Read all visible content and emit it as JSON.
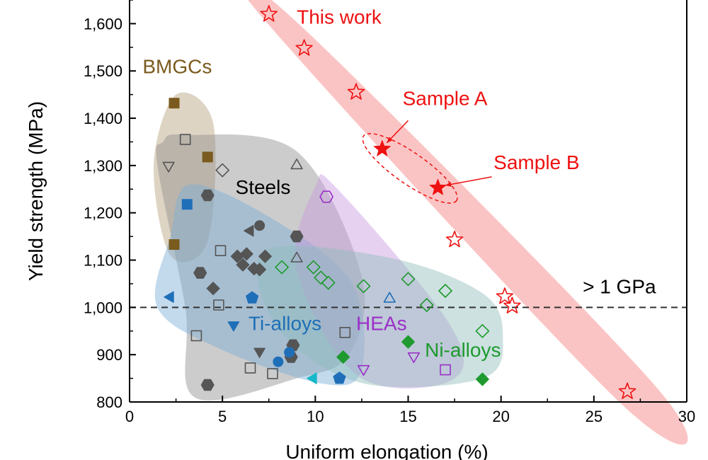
{
  "chart_data": {
    "type": "scatter",
    "xlabel": "Uniform elongation (%)",
    "ylabel": "Yield strength (MPa)",
    "xlim": [
      0,
      30
    ],
    "ylim": [
      800,
      1650
    ],
    "x_ticks": [
      0,
      5,
      10,
      15,
      20,
      25,
      30
    ],
    "y_ticks": [
      800,
      900,
      1000,
      1100,
      1200,
      1300,
      1400,
      1500,
      1600
    ],
    "x_tick_labels": [
      "0",
      "5",
      "10",
      "15",
      "20",
      "25",
      "30"
    ],
    "y_tick_labels": [
      "800",
      "900",
      "1,000",
      "1,100",
      "1,200",
      "1,300",
      "1,400",
      "1,500",
      "1,600"
    ],
    "threshold": {
      "y": 1000,
      "label": "> 1 GPa"
    },
    "groups": [
      {
        "name": "This work",
        "color": "#ee1111",
        "fill": "#f77d7d",
        "region": [
          [
            7.0,
            1620
          ],
          [
            9.5,
            1585
          ],
          [
            28.5,
            825
          ],
          [
            26.5,
            795
          ]
        ],
        "points": [
          {
            "x": 7.5,
            "y": 1620,
            "marker": "star-open"
          },
          {
            "x": 9.4,
            "y": 1548,
            "marker": "star-open"
          },
          {
            "x": 12.2,
            "y": 1455,
            "marker": "star-open"
          },
          {
            "x": 17.5,
            "y": 1143,
            "marker": "star-open"
          },
          {
            "x": 20.2,
            "y": 1023,
            "marker": "star-open"
          },
          {
            "x": 20.6,
            "y": 1003,
            "marker": "star-open"
          },
          {
            "x": 26.8,
            "y": 822,
            "marker": "star-open"
          },
          {
            "x": 13.6,
            "y": 1335,
            "marker": "star-filled"
          },
          {
            "x": 16.6,
            "y": 1253,
            "marker": "star-filled"
          }
        ]
      },
      {
        "name": "BMGCs",
        "color": "#7a5a1e",
        "fill": "#b59f7a",
        "region": [
          [
            2.5,
            1450
          ],
          [
            4.5,
            1390
          ],
          [
            4.2,
            1140
          ],
          [
            2.2,
            1110
          ],
          [
            1.3,
            1300
          ]
        ],
        "points": [
          {
            "x": 2.4,
            "y": 1432,
            "marker": "square-filled"
          },
          {
            "x": 4.2,
            "y": 1318,
            "marker": "square-filled"
          },
          {
            "x": 2.4,
            "y": 1133,
            "marker": "square-filled"
          }
        ]
      },
      {
        "name": "Steels",
        "color": "#555555",
        "fill": "#8f8f8f",
        "region": [
          [
            1.8,
            1350
          ],
          [
            3.0,
            1365
          ],
          [
            9.0,
            1330
          ],
          [
            12.5,
            1065
          ],
          [
            11.8,
            900
          ],
          [
            9.0,
            850
          ],
          [
            3.5,
            810
          ],
          [
            3.0,
            1000
          ],
          [
            1.5,
            1300
          ]
        ],
        "points": [
          {
            "x": 3.0,
            "y": 1355,
            "marker": "square-open"
          },
          {
            "x": 2.1,
            "y": 1300,
            "marker": "triangle-down-open"
          },
          {
            "x": 5.0,
            "y": 1290,
            "marker": "diamond-open"
          },
          {
            "x": 9.0,
            "y": 1300,
            "marker": "triangle-up-open"
          },
          {
            "x": 4.2,
            "y": 1237,
            "marker": "hexagon-filled"
          },
          {
            "x": 9.0,
            "y": 1150,
            "marker": "hexagon-filled"
          },
          {
            "x": 6.5,
            "y": 1162,
            "marker": "triangle-left-filled"
          },
          {
            "x": 7.0,
            "y": 1173,
            "marker": "circle-filled"
          },
          {
            "x": 4.9,
            "y": 1120,
            "marker": "square-open"
          },
          {
            "x": 9.0,
            "y": 1103,
            "marker": "triangle-up-open"
          },
          {
            "x": 5.8,
            "y": 1108,
            "marker": "diamond-filled"
          },
          {
            "x": 6.3,
            "y": 1113,
            "marker": "diamond-filled"
          },
          {
            "x": 7.3,
            "y": 1108,
            "marker": "diamond-filled"
          },
          {
            "x": 6.1,
            "y": 1090,
            "marker": "diamond-filled"
          },
          {
            "x": 6.7,
            "y": 1082,
            "marker": "diamond-filled"
          },
          {
            "x": 7.0,
            "y": 1080,
            "marker": "diamond-filled"
          },
          {
            "x": 3.8,
            "y": 1073,
            "marker": "hexagon-filled"
          },
          {
            "x": 4.5,
            "y": 1040,
            "marker": "diamond-filled"
          },
          {
            "x": 4.8,
            "y": 1005,
            "marker": "square-open"
          },
          {
            "x": 11.6,
            "y": 947,
            "marker": "square-open"
          },
          {
            "x": 3.6,
            "y": 940,
            "marker": "square-open"
          },
          {
            "x": 8.8,
            "y": 920,
            "marker": "hexagon-filled"
          },
          {
            "x": 7.0,
            "y": 907,
            "marker": "triangle-down-filled"
          },
          {
            "x": 8.7,
            "y": 895,
            "marker": "hexagon-filled"
          },
          {
            "x": 6.5,
            "y": 872,
            "marker": "square-open"
          },
          {
            "x": 7.7,
            "y": 860,
            "marker": "square-open"
          },
          {
            "x": 4.2,
            "y": 836,
            "marker": "hexagon-filled"
          }
        ]
      },
      {
        "name": "Ti-alloys",
        "color": "#1f6fb8",
        "fill": "#7aaed6",
        "region": [
          [
            3.3,
            1260
          ],
          [
            8.0,
            1180
          ],
          [
            12.0,
            1050
          ],
          [
            12.5,
            870
          ],
          [
            10.5,
            838
          ],
          [
            5.0,
            910
          ],
          [
            1.5,
            1000
          ],
          [
            2.2,
            1150
          ]
        ],
        "points": [
          {
            "x": 3.1,
            "y": 1218,
            "marker": "square-filled"
          },
          {
            "x": 2.2,
            "y": 1022,
            "marker": "triangle-left-filled"
          },
          {
            "x": 6.6,
            "y": 1020,
            "marker": "pentagon-filled"
          },
          {
            "x": 5.6,
            "y": 963,
            "marker": "triangle-down-filled"
          },
          {
            "x": 8.6,
            "y": 905,
            "marker": "circle-filled"
          },
          {
            "x": 8.0,
            "y": 885,
            "marker": "circle-filled"
          },
          {
            "x": 11.3,
            "y": 850,
            "marker": "pentagon-filled"
          },
          {
            "x": 9.9,
            "y": 850,
            "marker": "triangle-left-filled-cyan"
          }
        ]
      },
      {
        "name": "HEAs",
        "color": "#9b30c8",
        "fill": "#c79ae0",
        "region": [
          [
            10.0,
            1255
          ],
          [
            11.2,
            1250
          ],
          [
            17.3,
            960
          ],
          [
            17.3,
            845
          ],
          [
            12.3,
            855
          ],
          [
            9.0,
            1080
          ]
        ],
        "points": [
          {
            "x": 10.6,
            "y": 1234,
            "marker": "hexagon-open"
          },
          {
            "x": 15.3,
            "y": 897,
            "marker": "triangle-down-open"
          },
          {
            "x": 12.6,
            "y": 870,
            "marker": "triangle-down-open"
          },
          {
            "x": 17.0,
            "y": 868,
            "marker": "square-open"
          }
        ]
      },
      {
        "name": "Ni-alloys",
        "color": "#1e9a2e",
        "fill": "#8fbcba",
        "region": [
          [
            7.3,
            1120
          ],
          [
            14.0,
            1105
          ],
          [
            19.0,
            1030
          ],
          [
            20.1,
            940
          ],
          [
            19.0,
            850
          ],
          [
            12.5,
            840
          ],
          [
            8.0,
            955
          ]
        ],
        "points": [
          {
            "x": 8.2,
            "y": 1085,
            "marker": "diamond-open"
          },
          {
            "x": 9.9,
            "y": 1085,
            "marker": "diamond-open"
          },
          {
            "x": 10.3,
            "y": 1063,
            "marker": "diamond-open"
          },
          {
            "x": 10.7,
            "y": 1052,
            "marker": "diamond-open"
          },
          {
            "x": 12.6,
            "y": 1045,
            "marker": "diamond-open"
          },
          {
            "x": 15.0,
            "y": 1060,
            "marker": "diamond-open"
          },
          {
            "x": 17.0,
            "y": 1035,
            "marker": "diamond-open"
          },
          {
            "x": 16.0,
            "y": 1005,
            "marker": "diamond-open"
          },
          {
            "x": 19.0,
            "y": 950,
            "marker": "diamond-open"
          },
          {
            "x": 14.0,
            "y": 1018,
            "marker": "triangle-up-open-blue"
          },
          {
            "x": 15.0,
            "y": 927,
            "marker": "diamond-filled"
          },
          {
            "x": 11.5,
            "y": 895,
            "marker": "diamond-filled"
          },
          {
            "x": 19.0,
            "y": 848,
            "marker": "diamond-filled"
          }
        ]
      }
    ],
    "annotations": [
      {
        "text": "This work",
        "color": "#ee1111",
        "x": 9.0,
        "y": 1600
      },
      {
        "text": "BMGCs",
        "color": "#7a5a1e",
        "x": 0.7,
        "y": 1495
      },
      {
        "text": "Steels",
        "color": "#000000",
        "x": 5.7,
        "y": 1240
      },
      {
        "text": "Ti-alloys",
        "color": "#1f6fb8",
        "x": 6.4,
        "y": 952
      },
      {
        "text": "HEAs",
        "color": "#9b30c8",
        "x": 12.2,
        "y": 952
      },
      {
        "text": "Ni-alloys",
        "color": "#1e9a2e",
        "x": 15.9,
        "y": 896
      },
      {
        "text": "Sample A",
        "color": "#ee1111",
        "x": 14.7,
        "y": 1428
      },
      {
        "text": "Sample B",
        "color": "#ee1111",
        "x": 19.6,
        "y": 1292
      }
    ]
  }
}
